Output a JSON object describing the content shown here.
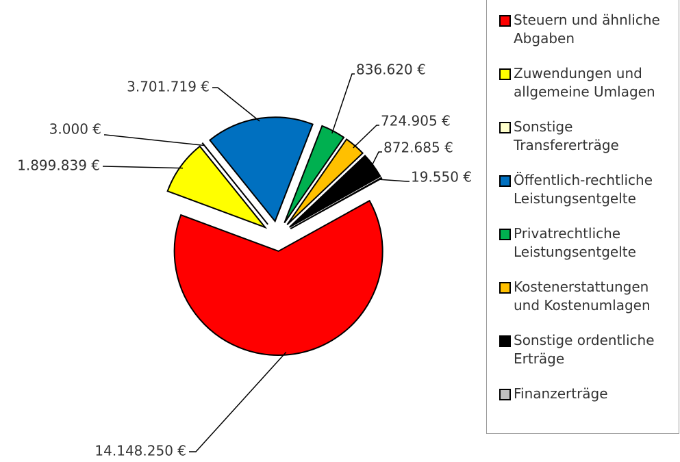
{
  "chart_data": {
    "type": "pie",
    "categories": [
      "Steuern und ähnliche Abgaben",
      "Zuwendungen und allgemeine Umlagen",
      "Sonstige Transfererträge",
      "Öffentlich-rechtliche Leistungsentgelte",
      "Privatrechtliche Leistungsentgelte",
      "Kostenerstattungen und Kostenumlagen",
      "Sonstige ordentliche Erträge",
      "Finanzerträge"
    ],
    "values": [
      14148250,
      1899839,
      3000,
      3701719,
      836620,
      724905,
      872685,
      19550
    ],
    "value_labels": [
      "14.148.250 €",
      "1.899.839 €",
      "3.000 €",
      "3.701.719 €",
      "836.620 €",
      "724.905 €",
      "872.685 €",
      "19.550 €"
    ],
    "colors": [
      "#ff0000",
      "#ffff00",
      "#ffffcc",
      "#0070c0",
      "#00b050",
      "#ffc000",
      "#000000",
      "#bfbfbf"
    ],
    "legend": "right"
  }
}
